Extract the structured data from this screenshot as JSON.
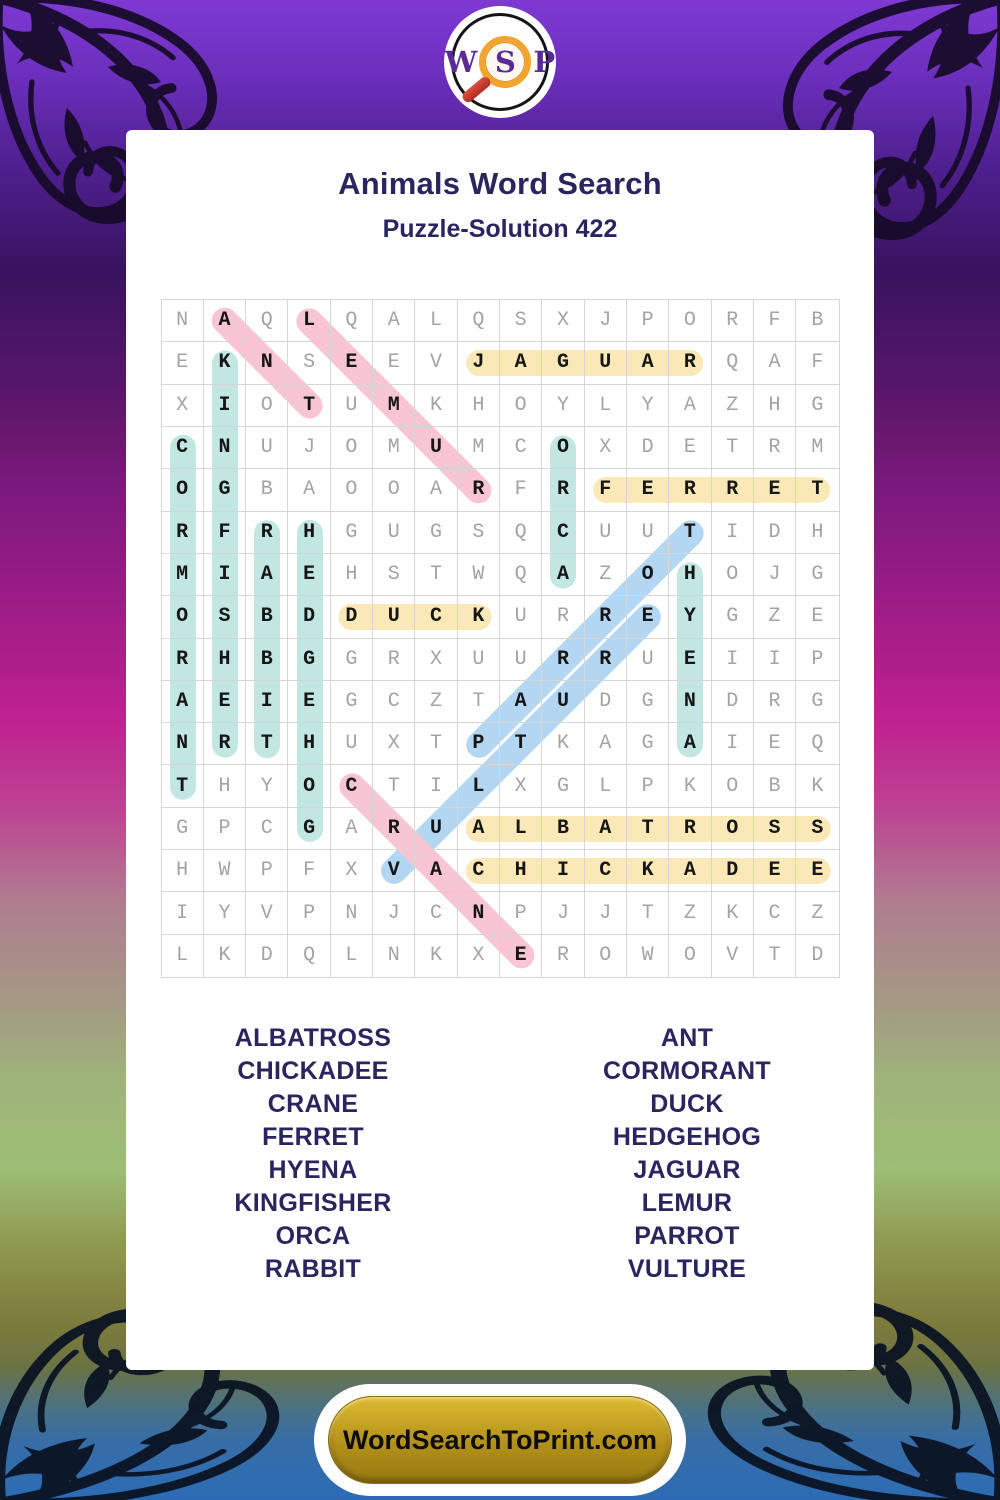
{
  "logo": {
    "letters": [
      "W",
      "S",
      "P"
    ]
  },
  "header": {
    "title": "Animals Word Search",
    "subtitle": "Puzzle-Solution 422"
  },
  "grid": {
    "rows": [
      "NAQLQALQSXJPORFB",
      "EKNSEEVJAGUARQAF",
      "XIOTUMKHOYLYAZHG",
      "CNUJOMUMCOXDETRM",
      "OGBAOOARFRFERRET",
      "RFRHGUGSQCUUTIDH",
      "MIAEHSTWQAZOHOJG",
      "OSBDDUCKURREYGZE",
      "RHBGGRXUURRUEIIP",
      "AEIEGCZTAUDGNDRG",
      "NRTHUXTPTKAGAIEQ",
      "THYOCTILXGLPKOBK",
      "GPCGARUALBATROSS",
      "HWPFXVACHICKADEE",
      "IYVPNJCNPJJTZKCZ",
      "LKDQLNKXEROWOVTD"
    ]
  },
  "highlights": [
    {
      "word": "KINGFISHER",
      "color": "teal",
      "start": [
        2,
        2
      ],
      "end": [
        11,
        2
      ]
    },
    {
      "word": "CORMORANT",
      "color": "teal",
      "start": [
        4,
        1
      ],
      "end": [
        12,
        1
      ]
    },
    {
      "word": "ORCA",
      "color": "teal",
      "start": [
        4,
        10
      ],
      "end": [
        7,
        10
      ]
    },
    {
      "word": "RABBIT",
      "color": "teal",
      "start": [
        6,
        3
      ],
      "end": [
        11,
        3
      ]
    },
    {
      "word": "HEDGEHOG",
      "color": "teal",
      "start": [
        6,
        4
      ],
      "end": [
        13,
        4
      ]
    },
    {
      "word": "HYENA",
      "color": "teal",
      "start": [
        7,
        13
      ],
      "end": [
        11,
        13
      ]
    },
    {
      "word": "JAGUAR",
      "color": "yellow",
      "start": [
        2,
        8
      ],
      "end": [
        2,
        13
      ]
    },
    {
      "word": "FERRET",
      "color": "yellow",
      "start": [
        5,
        11
      ],
      "end": [
        5,
        16
      ]
    },
    {
      "word": "DUCK",
      "color": "yellow",
      "start": [
        8,
        5
      ],
      "end": [
        8,
        8
      ]
    },
    {
      "word": "ALBATROSS",
      "color": "yellow",
      "start": [
        13,
        8
      ],
      "end": [
        13,
        16
      ]
    },
    {
      "word": "CHICKADEE",
      "color": "yellow",
      "start": [
        14,
        8
      ],
      "end": [
        14,
        16
      ]
    },
    {
      "word": "PARROT",
      "color": "blue",
      "start": [
        11,
        8
      ],
      "end": [
        6,
        13
      ]
    },
    {
      "word": "VULTURE",
      "color": "blue",
      "start": [
        14,
        6
      ],
      "end": [
        8,
        12
      ]
    },
    {
      "word": "ANT",
      "color": "pink",
      "start": [
        1,
        2
      ],
      "end": [
        3,
        4
      ]
    },
    {
      "word": "LEMUR",
      "color": "pink",
      "start": [
        1,
        4
      ],
      "end": [
        5,
        8
      ]
    },
    {
      "word": "CRANE",
      "color": "pink",
      "start": [
        12,
        5
      ],
      "end": [
        16,
        9
      ]
    }
  ],
  "word_list": {
    "left": [
      "ALBATROSS",
      "CHICKADEE",
      "CRANE",
      "FERRET",
      "HYENA",
      "KINGFISHER",
      "ORCA",
      "RABBIT"
    ],
    "right": [
      "ANT",
      "CORMORANT",
      "DUCK",
      "HEDGEHOG",
      "JAGUAR",
      "LEMUR",
      "PARROT",
      "VULTURE"
    ]
  },
  "footer": {
    "button_label": "WordSearchToPrint.com"
  },
  "colors": {
    "navy_text": "#29265f",
    "highlight_yellow": "#fae9b7",
    "highlight_teal": "#c2e6e1",
    "highlight_pink": "#f7c6d2",
    "highlight_blue": "#b3d6f3",
    "button_gold": "#b3901a",
    "background_top_purple": "#7e39d3",
    "background_bottom_blue": "#2c6cb5",
    "lens_orange": "#f2a52e",
    "logo_letter_purple": "#5a2a99"
  }
}
